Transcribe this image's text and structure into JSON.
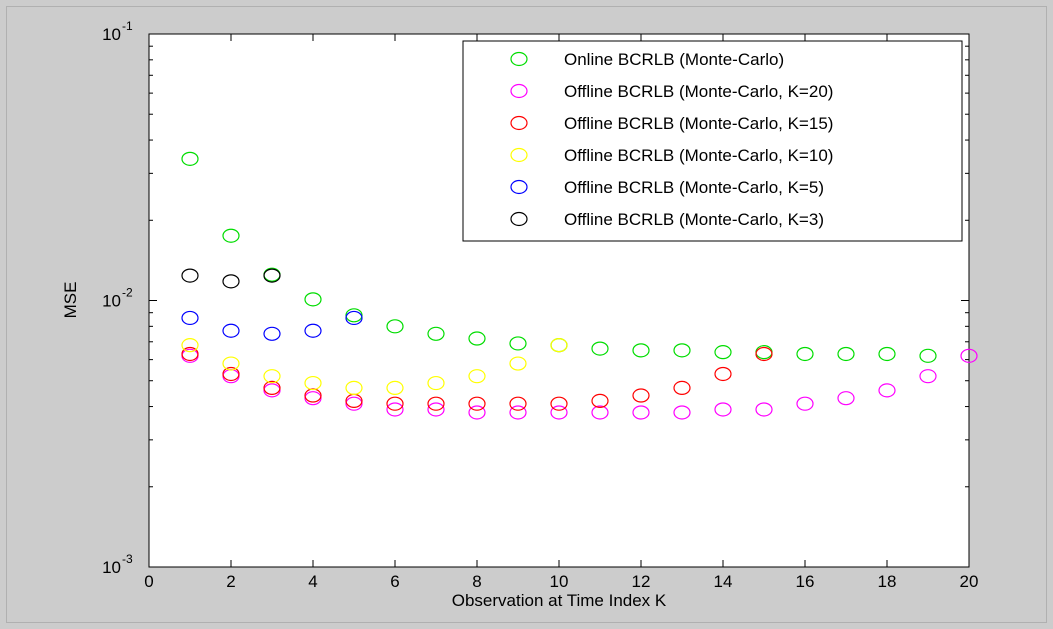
{
  "chart_data": {
    "type": "scatter",
    "title": "",
    "xlabel": "Observation at Time Index K",
    "ylabel": "MSE",
    "xlim": [
      0,
      20
    ],
    "ylim": [
      0.001,
      0.1
    ],
    "yscale": "log",
    "grid": false,
    "legend_position": "top-right",
    "x_ticks": [
      "0",
      "2",
      "4",
      "6",
      "8",
      "10",
      "12",
      "14",
      "16",
      "18",
      "20"
    ],
    "y_ticks": [
      {
        "base": "10",
        "exp": "-3"
      },
      {
        "base": "10",
        "exp": "-2"
      },
      {
        "base": "10",
        "exp": "-1"
      }
    ],
    "series": [
      {
        "name": "Online BCRLB (Monte-Carlo)",
        "color": "#00dd00",
        "x": [
          1,
          2,
          3,
          4,
          5,
          6,
          7,
          8,
          9,
          10,
          11,
          12,
          13,
          14,
          15,
          16,
          17,
          18,
          19
        ],
        "y": [
          0.034,
          0.0175,
          0.0125,
          0.0101,
          0.0088,
          0.008,
          0.0075,
          0.0072,
          0.0069,
          0.0068,
          0.0066,
          0.0065,
          0.0065,
          0.0064,
          0.0064,
          0.0063,
          0.0063,
          0.0063,
          0.0062
        ]
      },
      {
        "name": "Offline BCRLB (Monte-Carlo, K=20)",
        "color": "#ff00ff",
        "x": [
          1,
          2,
          3,
          4,
          5,
          6,
          7,
          8,
          9,
          10,
          11,
          12,
          13,
          14,
          15,
          16,
          17,
          18,
          19,
          20
        ],
        "y": [
          0.0062,
          0.0052,
          0.0046,
          0.0043,
          0.0041,
          0.0039,
          0.0039,
          0.0038,
          0.0038,
          0.0038,
          0.0038,
          0.0038,
          0.0038,
          0.0039,
          0.0039,
          0.0041,
          0.0043,
          0.0046,
          0.0052,
          0.0062
        ]
      },
      {
        "name": "Offline BCRLB (Monte-Carlo, K=15)",
        "color": "#ff0000",
        "x": [
          1,
          2,
          3,
          4,
          5,
          6,
          7,
          8,
          9,
          10,
          11,
          12,
          13,
          14,
          15
        ],
        "y": [
          0.0063,
          0.0053,
          0.0047,
          0.0044,
          0.0042,
          0.0041,
          0.0041,
          0.0041,
          0.0041,
          0.0041,
          0.0042,
          0.0044,
          0.0047,
          0.0053,
          0.0063
        ]
      },
      {
        "name": "Offline BCRLB (Monte-Carlo, K=10)",
        "color": "#ffff00",
        "x": [
          1,
          2,
          3,
          4,
          5,
          6,
          7,
          8,
          9,
          10
        ],
        "y": [
          0.0068,
          0.0058,
          0.0052,
          0.0049,
          0.0047,
          0.0047,
          0.0049,
          0.0052,
          0.0058,
          0.0068
        ]
      },
      {
        "name": "Offline BCRLB (Monte-Carlo, K=5)",
        "color": "#0000ff",
        "x": [
          1,
          2,
          3,
          4,
          5
        ],
        "y": [
          0.0086,
          0.0077,
          0.0075,
          0.0077,
          0.0086
        ]
      },
      {
        "name": "Offline BCRLB (Monte-Carlo, K=3)",
        "color": "#000000",
        "x": [
          1,
          2,
          3
        ],
        "y": [
          0.0124,
          0.0118,
          0.0124
        ]
      }
    ]
  }
}
